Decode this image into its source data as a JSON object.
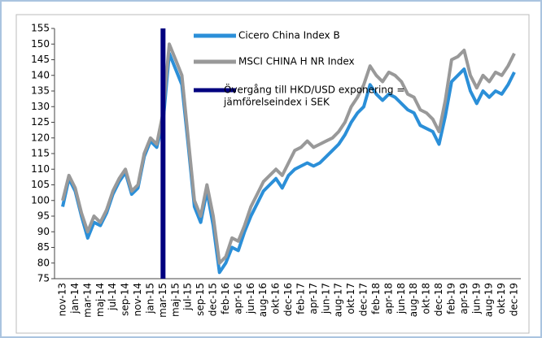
{
  "chart_data": {
    "type": "line",
    "categories": [
      "nov-13",
      null,
      "jan-14",
      null,
      "mar-14",
      null,
      "maj-14",
      null,
      "jul-14",
      null,
      "sep-14",
      null,
      "nov-14",
      null,
      "jan-15",
      null,
      "mar-15",
      null,
      "maj-15",
      null,
      "jul-15",
      null,
      "sep-15",
      null,
      "dec-15",
      null,
      "feb-16",
      null,
      "apr-16",
      null,
      "jun-16",
      null,
      "aug-16",
      null,
      "okt-16",
      null,
      "dec-16",
      null,
      "feb-17",
      null,
      "apr-17",
      null,
      "jun-17",
      null,
      "aug-17",
      null,
      "okt-17",
      null,
      "dec-17",
      null,
      "feb-18",
      null,
      "apr-18",
      null,
      "jun-18",
      null,
      "aug-18",
      null,
      "okt-18",
      null,
      "dec-18",
      null,
      "feb-19",
      null,
      "apr-19",
      null,
      "jun-19",
      null,
      "aug-19",
      null,
      "okt-19",
      null,
      "dec-19"
    ],
    "series": [
      {
        "name": "Cicero China Index B",
        "color": "#2b8fd8",
        "values": [
          98,
          107,
          103,
          95,
          88,
          93,
          92,
          96,
          102,
          106,
          109,
          102,
          104,
          114,
          119,
          117,
          125,
          147,
          142,
          137,
          118,
          98,
          93,
          103,
          92,
          77,
          80,
          85,
          84,
          90,
          95,
          99,
          103,
          105,
          107,
          104,
          108,
          110,
          111,
          112,
          111,
          112,
          114,
          116,
          118,
          121,
          125,
          128,
          130,
          137,
          134,
          132,
          134,
          133,
          131,
          129,
          128,
          124,
          123,
          122,
          118,
          127,
          138,
          140,
          142,
          135,
          131,
          135,
          133,
          135,
          134,
          137,
          141
        ]
      },
      {
        "name": "MSCI CHINA H NR Index",
        "color": "#999999",
        "values": [
          100,
          108,
          104,
          96,
          90,
          95,
          93,
          97,
          103,
          107,
          110,
          103,
          105,
          115,
          120,
          118,
          128,
          150,
          145,
          140,
          120,
          100,
          95,
          105,
          95,
          80,
          82,
          88,
          87,
          92,
          98,
          102,
          106,
          108,
          110,
          108,
          112,
          116,
          117,
          119,
          117,
          118,
          119,
          120,
          122,
          125,
          130,
          133,
          137,
          143,
          140,
          138,
          141,
          140,
          138,
          134,
          133,
          129,
          128,
          126,
          122,
          132,
          145,
          146,
          148,
          140,
          136,
          140,
          138,
          141,
          140,
          143,
          147
        ]
      }
    ],
    "vline": {
      "name": [
        "Övergång till HKD/USD exponering =",
        "jämförelseindex i SEK"
      ],
      "color": "#00007f",
      "category": "mar-15"
    },
    "ylim": [
      75,
      155
    ],
    "yticks": [
      75,
      80,
      85,
      90,
      95,
      100,
      105,
      110,
      115,
      120,
      125,
      130,
      135,
      140,
      145,
      150,
      155
    ],
    "grid": false
  }
}
